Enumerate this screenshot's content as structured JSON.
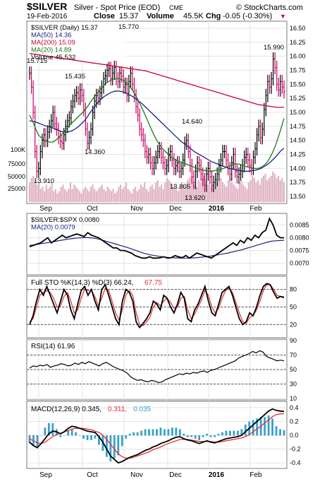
{
  "header": {
    "symbol": "$SILVER",
    "name": "Silver - Spot Price (EOD)",
    "exchange": "CME",
    "copyright": "© StockCharts.com",
    "date": "19-Feb-2016",
    "close_label": "Close",
    "close": "15.37",
    "volume_label": "Volume",
    "volume": "45.5K",
    "chg_label": "Chg",
    "chg": "-0.05 (-0.30%)",
    "down_marker": "▼"
  },
  "colors": {
    "price_up": "#000000",
    "price_down": "#cc0066",
    "ma50": "#1a237e",
    "ma200": "#cc0033",
    "ma20": "#1b7a1b",
    "volume": "#e0b5c5",
    "ratio": "#000000",
    "ratio_ma": "#1a237e",
    "k": "#000000",
    "d": "#e53030",
    "rsi": "#000000",
    "macd": "#000000",
    "macd_signal": "#e53030",
    "hist": "#3aa0c8"
  },
  "chart_data": [
    {
      "type": "line",
      "legend": [
        {
          "label": "$SILVER (Daily) 15.37",
          "color": "#000000"
        },
        {
          "label": "MA(50) 14.36",
          "color": "#1a237e"
        },
        {
          "label": "MA(200) 15.09",
          "color": "#cc0033"
        },
        {
          "label": "MA(20) 14.89",
          "color": "#1b7a1b"
        },
        {
          "label": "Volume 45,532",
          "color": "#000000"
        }
      ],
      "ylim": [
        13.4,
        16.6
      ],
      "y_ticks": [
        "13.50",
        "13.75",
        "14.00",
        "14.25",
        "14.50",
        "14.75",
        "15.00",
        "15.25",
        "15.50",
        "15.75",
        "16.00",
        "16.25",
        "16.50"
      ],
      "volume_ticks": [
        "100K",
        "75000",
        "50000",
        "25000"
      ],
      "annotations": [
        "15.715",
        "13.910",
        "15.435",
        "14.360",
        "15.770",
        "14.640",
        "13.805",
        "13.620",
        "15.990"
      ],
      "price": [
        15.7,
        15.45,
        15.0,
        14.3,
        13.95,
        14.0,
        14.3,
        14.5,
        14.6,
        14.5,
        14.65,
        14.75,
        14.85,
        15.0,
        14.8,
        14.7,
        14.55,
        14.48,
        14.45,
        14.6,
        14.75,
        14.85,
        14.9,
        15.1,
        15.2,
        15.3,
        15.35,
        15.25,
        15.4,
        15.3,
        15.05,
        14.7,
        14.45,
        14.55,
        14.7,
        15.0,
        15.2,
        15.3,
        15.25,
        15.35,
        15.45,
        15.6,
        15.65,
        15.75,
        15.78,
        15.6,
        15.7,
        15.8,
        15.6,
        15.55,
        15.7,
        15.65,
        15.45,
        15.5,
        15.3,
        15.55,
        15.7,
        15.5,
        15.3,
        15.1,
        14.95,
        14.7,
        14.6,
        14.5,
        14.3,
        14.2,
        14.25,
        14.1,
        14.0,
        14.1,
        14.2,
        14.3,
        14.35,
        14.2,
        14.1,
        14.0,
        14.05,
        14.25,
        14.3,
        14.15,
        14.0,
        14.05,
        14.1,
        13.95,
        14.0,
        14.15,
        14.45,
        14.5,
        14.3,
        14.05,
        13.85,
        13.75,
        13.95,
        14.1,
        14.05,
        13.9,
        13.8,
        13.7,
        13.9,
        14.0,
        13.85,
        13.7,
        13.75,
        13.8,
        13.9,
        14.05,
        14.15,
        14.3,
        14.3,
        14.15,
        14.0,
        13.9,
        14.1,
        14.25,
        13.95,
        13.85,
        13.9,
        13.95,
        14.05,
        14.2,
        14.25,
        14.15,
        14.05,
        14.0,
        14.2,
        14.35,
        14.6,
        14.75,
        14.55,
        14.7,
        15.05,
        15.3,
        15.55,
        15.45,
        15.6,
        15.95,
        15.8,
        15.5,
        15.4,
        15.55,
        15.45,
        15.37
      ],
      "ma50": [
        14.85,
        14.84,
        14.83,
        14.81,
        14.79,
        14.77,
        14.75,
        14.74,
        14.72,
        14.7,
        14.68,
        14.66,
        14.65,
        14.65,
        14.66,
        14.68,
        14.71,
        14.75,
        14.8,
        14.85,
        14.92,
        15.0,
        15.07,
        15.14,
        15.2,
        15.25,
        15.29,
        15.32,
        15.35,
        15.37,
        15.38,
        15.38,
        15.37,
        15.35,
        15.33,
        15.3,
        15.27,
        15.23,
        15.19,
        15.15,
        15.1,
        15.05,
        15.0,
        14.95,
        14.9,
        14.85,
        14.8,
        14.75,
        14.7,
        14.65,
        14.6,
        14.55,
        14.5,
        14.46,
        14.42,
        14.38,
        14.34,
        14.3,
        14.27,
        14.24,
        14.21,
        14.18,
        14.15,
        14.12,
        14.1,
        14.08,
        14.06,
        14.04,
        14.02,
        14.0,
        13.99,
        13.98,
        13.97,
        13.96,
        13.95,
        13.95,
        13.95,
        13.96,
        13.97,
        13.98,
        14.0,
        14.03,
        14.06,
        14.1,
        14.15,
        14.2,
        14.26,
        14.32,
        14.36
      ],
      "ma200": [
        16.05,
        16.04,
        16.03,
        16.02,
        16.01,
        16.0,
        15.99,
        15.98,
        15.97,
        15.96,
        15.95,
        15.94,
        15.93,
        15.92,
        15.91,
        15.9,
        15.89,
        15.88,
        15.87,
        15.86,
        15.85,
        15.84,
        15.83,
        15.82,
        15.81,
        15.8,
        15.79,
        15.78,
        15.77,
        15.76,
        15.75,
        15.74,
        15.72,
        15.7,
        15.68,
        15.66,
        15.64,
        15.62,
        15.6,
        15.58,
        15.56,
        15.54,
        15.52,
        15.5,
        15.48,
        15.46,
        15.44,
        15.42,
        15.4,
        15.38,
        15.36,
        15.34,
        15.32,
        15.3,
        15.28,
        15.26,
        15.24,
        15.22,
        15.2,
        15.18,
        15.16,
        15.14,
        15.13,
        15.12,
        15.11,
        15.1,
        15.09,
        15.09,
        15.09
      ],
      "ma20": [
        14.95,
        14.85,
        14.72,
        14.6,
        14.55,
        14.5,
        14.48,
        14.47,
        14.47,
        14.5,
        14.55,
        14.6,
        14.66,
        14.72,
        14.78,
        14.83,
        14.88,
        14.93,
        14.98,
        15.03,
        15.1,
        15.18,
        15.25,
        15.32,
        15.38,
        15.44,
        15.5,
        15.54,
        15.57,
        15.59,
        15.6,
        15.6,
        15.58,
        15.55,
        15.5,
        15.44,
        15.36,
        15.27,
        15.17,
        15.06,
        14.95,
        14.83,
        14.71,
        14.6,
        14.5,
        14.42,
        14.35,
        14.3,
        14.25,
        14.2,
        14.17,
        14.14,
        14.12,
        14.1,
        14.08,
        14.06,
        14.04,
        14.02,
        14.0,
        13.98,
        13.97,
        13.96,
        13.95,
        13.95,
        13.96,
        13.97,
        13.98,
        14.0,
        14.02,
        14.04,
        14.06,
        14.08,
        14.08,
        14.07,
        14.05,
        14.03,
        14.02,
        14.01,
        14.0,
        14.0,
        14.02,
        14.05,
        14.1,
        14.18,
        14.28,
        14.4,
        14.55,
        14.72,
        14.89
      ],
      "volume_k": [
        45,
        55,
        60,
        50,
        40,
        45,
        30,
        35,
        25,
        40,
        30,
        35,
        45,
        25,
        30,
        20,
        25,
        35,
        40,
        30,
        25,
        30,
        45,
        30,
        40,
        35,
        30,
        25,
        20,
        30,
        35,
        30,
        25,
        35,
        40,
        30,
        25,
        30,
        35,
        40,
        30,
        25,
        35,
        30,
        25,
        30,
        20,
        25,
        35,
        40,
        30,
        35,
        45,
        30,
        25,
        20,
        30,
        35,
        25,
        30,
        40,
        35,
        45,
        30,
        25,
        35,
        40,
        30,
        45,
        50,
        35,
        40,
        30,
        45,
        55,
        50,
        45,
        35,
        40,
        30,
        25,
        35,
        45,
        40,
        35,
        50,
        55,
        60,
        45,
        40,
        35,
        50,
        45,
        55,
        60,
        50,
        40,
        45,
        35,
        40,
        30,
        45,
        50,
        55,
        45,
        40,
        35,
        50,
        55,
        45,
        40,
        35,
        30,
        45,
        50,
        40,
        35,
        30,
        45,
        50,
        60,
        55,
        45,
        50,
        40,
        55,
        60,
        65,
        50,
        55,
        60,
        70,
        65,
        55,
        60,
        50,
        55,
        45
      ],
      "xlabels": [
        "Sep",
        "Oct",
        "Nov",
        "Dec",
        "2016",
        "Feb"
      ]
    },
    {
      "type": "line",
      "legend": [
        {
          "label": "$SILVER:$SPX 0.0080",
          "color": "#000000"
        },
        {
          "label": "MA(20) 0.0079",
          "color": "#1a237e"
        }
      ],
      "ylim": [
        0.0066,
        0.0089
      ],
      "y_ticks": [
        "0.0070",
        "0.0075",
        "0.0080",
        "0.0085"
      ],
      "ratio": [
        0.00765,
        0.0077,
        0.00775,
        0.0078,
        0.0079,
        0.008,
        0.0078,
        0.0079,
        0.008,
        0.0081,
        0.008,
        0.00805,
        0.0081,
        0.00815,
        0.0081,
        0.00805,
        0.0082,
        0.0081,
        0.00805,
        0.008,
        0.0079,
        0.0078,
        0.0077,
        0.0076,
        0.0076,
        0.0075,
        0.0075,
        0.00745,
        0.0074,
        0.0073,
        0.00725,
        0.0072,
        0.0072,
        0.00725,
        0.0072,
        0.0072,
        0.00722,
        0.00725,
        0.0072,
        0.00722,
        0.0073,
        0.00725,
        0.00722,
        0.0073,
        0.0072,
        0.0073,
        0.0074,
        0.00735,
        0.0073,
        0.00725,
        0.0072,
        0.0073,
        0.0074,
        0.0075,
        0.0076,
        0.0077,
        0.0078,
        0.0077,
        0.0079,
        0.0078,
        0.008,
        0.0079,
        0.0081,
        0.008,
        0.0082,
        0.0083,
        0.00875,
        0.0085,
        0.0081,
        0.008,
        0.008
      ],
      "ratio_ma": [
        0.0077,
        0.00772,
        0.00775,
        0.00778,
        0.0078,
        0.00783,
        0.00786,
        0.00789,
        0.00792,
        0.00795,
        0.00797,
        0.00799,
        0.008,
        0.00801,
        0.008,
        0.00798,
        0.00795,
        0.0079,
        0.00785,
        0.0078,
        0.00775,
        0.0077,
        0.00765,
        0.0076,
        0.00754,
        0.00748,
        0.00742,
        0.00737,
        0.00733,
        0.0073,
        0.00727,
        0.00725,
        0.00723,
        0.00722,
        0.00721,
        0.0072,
        0.0072,
        0.0072,
        0.00721,
        0.00722,
        0.00724,
        0.00726,
        0.00728,
        0.00731,
        0.00734,
        0.00737,
        0.0074,
        0.00744,
        0.00748,
        0.00752,
        0.00757,
        0.00762,
        0.00767,
        0.00772,
        0.00777,
        0.00782,
        0.00786,
        0.00788,
        0.00789,
        0.0079
      ]
    },
    {
      "type": "line",
      "legend": [
        {
          "label": "Full STO %K(14,3) %D(3) 66.24,",
          "color": "#000000"
        },
        {
          "label": "67.75",
          "color": "#e53030"
        }
      ],
      "ylim": [
        0,
        100
      ],
      "y_ticks": [
        "20",
        "50",
        "80"
      ],
      "levels": [
        20,
        50,
        80
      ],
      "k": [
        20,
        35,
        60,
        80,
        70,
        85,
        70,
        55,
        40,
        60,
        80,
        70,
        45,
        30,
        55,
        78,
        85,
        70,
        80,
        60,
        45,
        80,
        88,
        70,
        50,
        30,
        20,
        60,
        80,
        75,
        60,
        25,
        15,
        22,
        30,
        40,
        60,
        55,
        45,
        70,
        65,
        50,
        40,
        55,
        75,
        65,
        30,
        25,
        45,
        55,
        70,
        85,
        60,
        40,
        35,
        55,
        75,
        80,
        85,
        70,
        50,
        30,
        20,
        25,
        40,
        35,
        50,
        70,
        85,
        90,
        88,
        75,
        65,
        68,
        66
      ],
      "d": [
        25,
        30,
        50,
        70,
        75,
        78,
        75,
        65,
        50,
        52,
        68,
        75,
        60,
        40,
        45,
        65,
        80,
        78,
        78,
        68,
        52,
        65,
        82,
        78,
        60,
        40,
        28,
        45,
        70,
        78,
        70,
        40,
        20,
        18,
        25,
        32,
        50,
        58,
        52,
        60,
        65,
        58,
        48,
        50,
        65,
        68,
        45,
        30,
        38,
        50,
        62,
        78,
        70,
        50,
        40,
        48,
        65,
        78,
        82,
        75,
        58,
        40,
        25,
        22,
        32,
        35,
        45,
        60,
        78,
        88,
        88,
        80,
        70,
        68,
        67.75
      ]
    },
    {
      "type": "line",
      "legend": [
        {
          "label": "RSI(14) 61.96",
          "color": "#000000"
        }
      ],
      "ylim": [
        10,
        90
      ],
      "y_ticks": [
        "10",
        "30",
        "50",
        "70",
        "90"
      ],
      "levels": [
        30,
        50,
        70
      ],
      "values": [
        52,
        55,
        54,
        56,
        55,
        57,
        53,
        55,
        56,
        58,
        57,
        55,
        56,
        59,
        57,
        60,
        58,
        61,
        59,
        57,
        55,
        58,
        60,
        57,
        54,
        52,
        50,
        48,
        45,
        40,
        37,
        35,
        36,
        34,
        33,
        35,
        34,
        32,
        33,
        36,
        38,
        40,
        42,
        44,
        43,
        45,
        44,
        46,
        45,
        47,
        48,
        46,
        49,
        50,
        52,
        54,
        56,
        58,
        60,
        62,
        66,
        68,
        70,
        72,
        75,
        73,
        76,
        74,
        68,
        66,
        64,
        62,
        63,
        62
      ]
    },
    {
      "type": "line",
      "legend": [
        {
          "label": "MACD(12,26,9) 0.345,",
          "color": "#000000"
        },
        {
          "label": "0.311,",
          "color": "#e53030"
        },
        {
          "label": "0.035",
          "color": "#3aa0c8"
        }
      ],
      "ylim": [
        -0.45,
        0.45
      ],
      "y_ticks": [
        "-0.4",
        "-0.2",
        "0.0",
        "0.2",
        "0.4"
      ],
      "levels": [
        0
      ],
      "macd": [
        -0.1,
        -0.15,
        -0.18,
        -0.12,
        -0.05,
        0.02,
        0.06,
        0.05,
        0.02,
        0.05,
        0.1,
        0.13,
        0.12,
        0.1,
        0.08,
        0.06,
        0.05,
        0.04,
        -0.02,
        -0.1,
        -0.2,
        -0.3,
        -0.35,
        -0.4,
        -0.38,
        -0.35,
        -0.32,
        -0.3,
        -0.28,
        -0.25,
        -0.22,
        -0.2,
        -0.17,
        -0.15,
        -0.12,
        -0.1,
        -0.08,
        -0.05,
        -0.03,
        -0.02,
        -0.05,
        -0.07,
        -0.08,
        -0.1,
        -0.12,
        -0.1,
        -0.08,
        -0.1,
        -0.11,
        -0.09,
        -0.07,
        -0.05,
        -0.04,
        -0.03,
        -0.02,
        0.0,
        0.05,
        0.1,
        0.15,
        0.2,
        0.25,
        0.3,
        0.35,
        0.38,
        0.36,
        0.35,
        0.345
      ],
      "signal": [
        -0.05,
        -0.08,
        -0.11,
        -0.12,
        -0.1,
        -0.06,
        -0.02,
        0.01,
        0.03,
        0.05,
        0.07,
        0.09,
        0.1,
        0.1,
        0.1,
        0.09,
        0.08,
        0.06,
        0.04,
        0.0,
        -0.06,
        -0.13,
        -0.2,
        -0.27,
        -0.31,
        -0.33,
        -0.33,
        -0.32,
        -0.3,
        -0.28,
        -0.26,
        -0.24,
        -0.21,
        -0.19,
        -0.17,
        -0.14,
        -0.12,
        -0.1,
        -0.08,
        -0.06,
        -0.06,
        -0.06,
        -0.07,
        -0.08,
        -0.09,
        -0.09,
        -0.09,
        -0.09,
        -0.1,
        -0.1,
        -0.09,
        -0.08,
        -0.07,
        -0.06,
        -0.05,
        -0.04,
        -0.02,
        0.01,
        0.05,
        0.09,
        0.13,
        0.18,
        0.22,
        0.27,
        0.3,
        0.31,
        0.311
      ],
      "xlabels": [
        "Sep",
        "Oct",
        "Nov",
        "Dec",
        "2016",
        "Feb"
      ]
    }
  ]
}
